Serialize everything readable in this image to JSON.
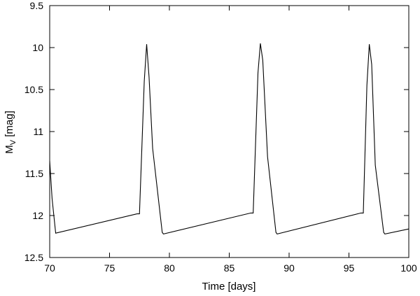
{
  "chart_data": {
    "type": "line",
    "xlabel": "Time [days]",
    "ylabel_main": "M",
    "ylabel_sub": "V",
    "ylabel_unit": " [mag]",
    "xlim": [
      70,
      100
    ],
    "ylim": [
      9.5,
      12.5
    ],
    "y_inverted": true,
    "grid": false,
    "x_ticks": [
      "70",
      "75",
      "80",
      "85",
      "90",
      "95",
      "100"
    ],
    "y_ticks": [
      "9.5",
      "10",
      "10.5",
      "11",
      "11.5",
      "12",
      "12.5"
    ],
    "series": [
      {
        "color": "#000000",
        "x": [
          70.0,
          70.2,
          70.5,
          77.3,
          77.5,
          77.9,
          78.1,
          78.3,
          78.6,
          79.4,
          79.5,
          86.8,
          87.0,
          87.4,
          87.6,
          87.8,
          88.2,
          88.9,
          89.0,
          96.0,
          96.2,
          96.5,
          96.7,
          96.9,
          97.2,
          97.9,
          98.0,
          100.0
        ],
        "y": [
          11.35,
          11.8,
          12.21,
          11.98,
          11.98,
          10.4,
          9.96,
          10.35,
          11.2,
          12.2,
          12.22,
          11.97,
          11.97,
          10.3,
          9.95,
          10.15,
          11.3,
          12.2,
          12.22,
          11.97,
          11.97,
          10.45,
          9.96,
          10.2,
          11.4,
          12.2,
          12.22,
          12.16
        ]
      }
    ]
  }
}
